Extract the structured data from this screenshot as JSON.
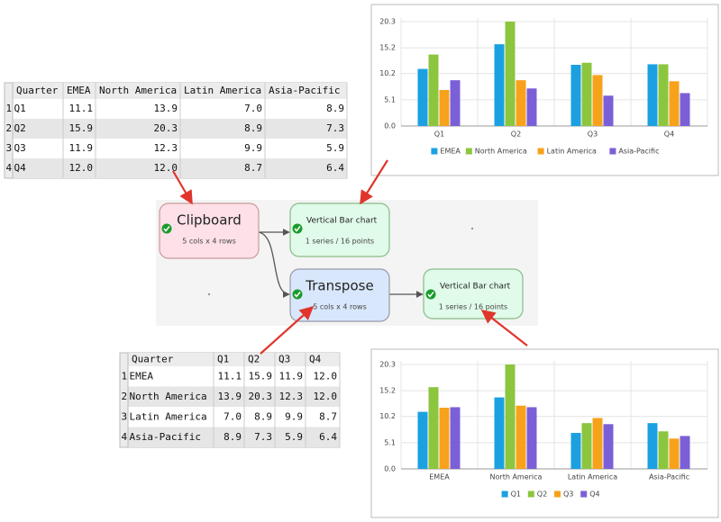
{
  "table1": {
    "header": [
      "Quarter",
      "EMEA",
      "North America",
      "Latin America",
      "Asia-Pacific"
    ],
    "rows": [
      [
        "1",
        "Q1",
        "11.1",
        "13.9",
        "7.0",
        "8.9"
      ],
      [
        "2",
        "Q2",
        "15.9",
        "20.3",
        "8.9",
        "7.3"
      ],
      [
        "3",
        "Q3",
        "11.9",
        "12.3",
        "9.9",
        "5.9"
      ],
      [
        "4",
        "Q4",
        "12.0",
        "12.0",
        "8.7",
        "6.4"
      ]
    ]
  },
  "table2": {
    "header": [
      "Quarter",
      "Q1",
      "Q2",
      "Q3",
      "Q4"
    ],
    "rows": [
      [
        "1",
        "EMEA",
        "11.1",
        "15.9",
        "11.9",
        "12.0"
      ],
      [
        "2",
        "North America",
        "13.9",
        "20.3",
        "12.3",
        "12.0"
      ],
      [
        "3",
        "Latin America",
        "7.0",
        "8.9",
        "9.9",
        "8.7"
      ],
      [
        "4",
        "Asia-Pacific",
        "8.9",
        "7.3",
        "5.9",
        "6.4"
      ]
    ]
  },
  "nodes": [
    {
      "label": "Clipboard",
      "detail": "5 cols x 4 rows"
    },
    {
      "label": "Vertical Bar chart",
      "detail": "1 series / 16 points"
    },
    {
      "label": "Transpose",
      "detail": "5 cols x 4 rows"
    },
    {
      "label": "Vertical Bar chart",
      "detail": "1 series / 16 points"
    }
  ],
  "chart_data": [
    {
      "type": "bar",
      "categories": [
        "Q1",
        "Q2",
        "Q3",
        "Q4"
      ],
      "series": [
        {
          "name": "EMEA",
          "color": "#1ba1e2",
          "values": [
            11.1,
            15.9,
            11.9,
            12.0
          ]
        },
        {
          "name": "North America",
          "color": "#8cc63f",
          "values": [
            13.9,
            20.3,
            12.3,
            12.0
          ]
        },
        {
          "name": "Latin America",
          "color": "#f7a21b",
          "values": [
            7.0,
            8.9,
            9.9,
            8.7
          ]
        },
        {
          "name": "Asia-Pacific",
          "color": "#7b5fd6",
          "values": [
            8.9,
            7.3,
            5.9,
            6.4
          ]
        }
      ],
      "ylim": [
        0,
        20.3
      ],
      "yticks": [
        {
          "value": 0,
          "label": "0.0"
        },
        5.1,
        10.2,
        15.2,
        20.3
      ],
      "grid": true,
      "legend": "bottom"
    },
    {
      "type": "bar",
      "categories": [
        "EMEA",
        "North America",
        "Latin America",
        "Asia-Pacific"
      ],
      "series": [
        {
          "name": "Q1",
          "color": "#1ba1e2",
          "values": [
            11.1,
            13.9,
            7.0,
            8.9
          ]
        },
        {
          "name": "Q2",
          "color": "#8cc63f",
          "values": [
            15.9,
            20.3,
            8.9,
            7.3
          ]
        },
        {
          "name": "Q3",
          "color": "#f7a21b",
          "values": [
            11.9,
            12.3,
            9.9,
            5.9
          ]
        },
        {
          "name": "Q4",
          "color": "#7b5fd6",
          "values": [
            12.0,
            12.0,
            8.7,
            6.4
          ]
        }
      ],
      "ylim": [
        0,
        20.3
      ],
      "yticks": [
        {
          "value": 0,
          "label": "0.0"
        },
        5.1,
        10.2,
        15.2,
        20.3
      ],
      "grid": true,
      "legend": "bottom"
    }
  ]
}
